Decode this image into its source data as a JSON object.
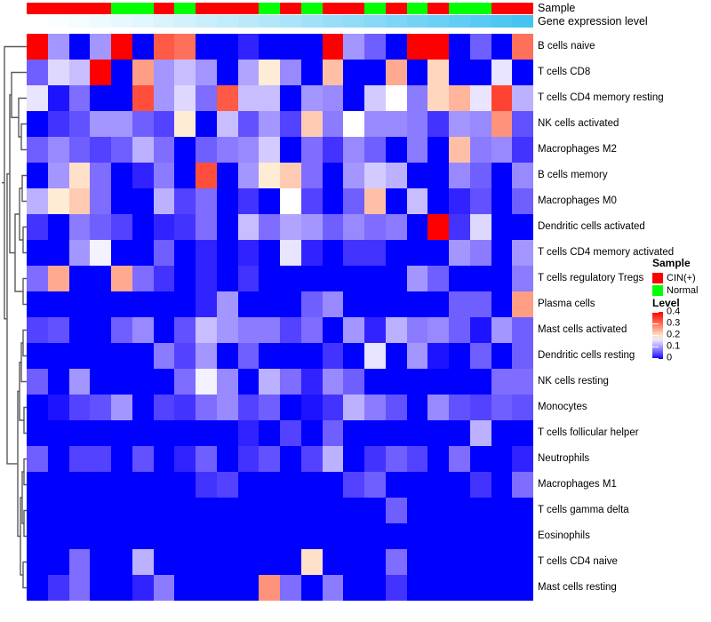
{
  "annotation_labels": {
    "sample": "Sample",
    "gene": "Gene expression level"
  },
  "legend": {
    "sample_title": "Sample",
    "sample_items": [
      {
        "label": "CIN(+)",
        "color": "#FF0000"
      },
      {
        "label": "Normal",
        "color": "#00FF00"
      }
    ],
    "level_title": "Level",
    "level_ticks": [
      "0.4",
      "0.3",
      "0.2",
      "0.1",
      "0"
    ]
  },
  "chart_data": {
    "type": "heatmap",
    "n_cols": 24,
    "rows": [
      "B cells naive",
      "T cells CD8",
      "T cells CD4 memory resting",
      "NK cells activated",
      "Macrophages M2",
      "B cells memory",
      "Macrophages M0",
      "Dendritic cells activated",
      "T cells CD4 memory activated",
      "T cells regulatory  Tregs",
      "Plasma cells",
      "Mast cells activated",
      "Dendritic cells resting",
      "NK cells resting",
      "Monocytes",
      "T cells follicular helper",
      "Neutrophils",
      "Macrophages M1",
      "T cells gamma delta",
      "Eosinophils",
      "T cells CD4 naive",
      "Mast cells resting"
    ],
    "values": [
      [
        0.4,
        0.1,
        0,
        0.1,
        0.4,
        0,
        0.32,
        0.3,
        0,
        0,
        0.02,
        0,
        0,
        0,
        0.4,
        0.1,
        0.06,
        0,
        0.4,
        0.4,
        0,
        0.06,
        0,
        0.3
      ],
      [
        0.06,
        0.15,
        0.13,
        0.4,
        0,
        0.26,
        0.1,
        0.13,
        0.1,
        0,
        0.11,
        0.19,
        0.09,
        0,
        0.23,
        0,
        0,
        0.25,
        0,
        0.21,
        0,
        0,
        0.16,
        0
      ],
      [
        0.16,
        0.01,
        0.07,
        0,
        0,
        0.33,
        0.1,
        0.15,
        0.07,
        0.32,
        0.13,
        0.13,
        0,
        0.1,
        0.09,
        0,
        0.14,
        0.18,
        0.08,
        0.21,
        0.24,
        0.16,
        0.34,
        0.12
      ],
      [
        0,
        0.03,
        0.05,
        0.1,
        0.1,
        0.06,
        0.04,
        0.19,
        0,
        0.13,
        0.05,
        0.1,
        0.04,
        0.22,
        0.08,
        0.18,
        0.09,
        0.09,
        0.08,
        0.03,
        0.1,
        0.09,
        0.27,
        0.05
      ],
      [
        0.06,
        0.09,
        0.06,
        0.04,
        0.06,
        0.12,
        0.07,
        0,
        0.06,
        0.08,
        0.09,
        0.14,
        0,
        0.07,
        0.03,
        0.09,
        0.06,
        0,
        0.08,
        0,
        0.23,
        0.08,
        0.09,
        0.03
      ],
      [
        0,
        0.1,
        0.2,
        0.07,
        0,
        0.02,
        0.08,
        0,
        0.33,
        0,
        0.1,
        0.19,
        0.22,
        0.07,
        0,
        0.1,
        0.14,
        0.12,
        0,
        0,
        0.09,
        0.06,
        0,
        0.09
      ],
      [
        0.12,
        0.19,
        0.22,
        0.07,
        0,
        0,
        0.12,
        0.04,
        0.07,
        0,
        0.03,
        0,
        0.18,
        0.04,
        0,
        0.06,
        0.23,
        0,
        0.13,
        0,
        0.02,
        0.05,
        0,
        0.06
      ],
      [
        0.03,
        0,
        0.08,
        0.06,
        0.04,
        0,
        0.02,
        0.03,
        0.07,
        0,
        0.13,
        0.07,
        0.11,
        0.1,
        0.06,
        0.09,
        0.07,
        0.08,
        0,
        0.4,
        0.03,
        0.15,
        0,
        0
      ],
      [
        0,
        0,
        0.1,
        0.17,
        0,
        0,
        0.06,
        0,
        0.02,
        0,
        0.02,
        0,
        0.16,
        0.02,
        0,
        0.03,
        0.03,
        0,
        0,
        0,
        0.1,
        0.08,
        0,
        0.1
      ],
      [
        0.07,
        0.25,
        0,
        0,
        0.25,
        0.07,
        0.03,
        0,
        0.02,
        0,
        0.03,
        0,
        0,
        0,
        0,
        0,
        0,
        0,
        0.1,
        0.06,
        0,
        0,
        0,
        0.08
      ],
      [
        0,
        0,
        0,
        0,
        0,
        0,
        0,
        0,
        0.02,
        0.1,
        0,
        0,
        0,
        0.06,
        0.09,
        0,
        0,
        0,
        0,
        0,
        0.06,
        0.06,
        0,
        0.26
      ],
      [
        0.04,
        0.05,
        0,
        0,
        0.06,
        0.09,
        0,
        0.05,
        0.13,
        0.1,
        0.08,
        0.08,
        0.04,
        0.07,
        0,
        0.1,
        0.02,
        0.12,
        0.08,
        0.09,
        0.06,
        0.01,
        0.1,
        0.06
      ],
      [
        0,
        0,
        0,
        0,
        0,
        0,
        0.08,
        0.04,
        0.1,
        0,
        0.06,
        0,
        0,
        0,
        0.03,
        0,
        0.16,
        0,
        0.1,
        0.01,
        0,
        0.06,
        0,
        0.06
      ],
      [
        0.06,
        0,
        0.1,
        0,
        0,
        0,
        0,
        0.07,
        0.17,
        0.09,
        0,
        0.12,
        0.07,
        0.02,
        0.09,
        0.06,
        0,
        0,
        0,
        0,
        0,
        0,
        0.07,
        0.07
      ],
      [
        0,
        0.01,
        0.04,
        0.05,
        0.1,
        0,
        0.04,
        0.03,
        0.07,
        0.09,
        0.04,
        0.06,
        0,
        0.01,
        0.03,
        0.12,
        0.08,
        0.05,
        0,
        0.09,
        0.05,
        0.04,
        0.06,
        0.05
      ],
      [
        0,
        0,
        0,
        0,
        0,
        0,
        0,
        0,
        0,
        0,
        0.02,
        0,
        0.04,
        0,
        0.06,
        0,
        0,
        0,
        0,
        0,
        0,
        0.12,
        0,
        0
      ],
      [
        0.06,
        0,
        0.04,
        0.04,
        0,
        0.05,
        0,
        0.02,
        0.06,
        0,
        0.03,
        0.05,
        0,
        0.04,
        0.12,
        0,
        0.03,
        0.06,
        0.04,
        0,
        0.07,
        0,
        0,
        0.02
      ],
      [
        0,
        0,
        0,
        0,
        0,
        0,
        0,
        0,
        0.03,
        0.04,
        0,
        0,
        0,
        0,
        0,
        0.04,
        0.06,
        0,
        0,
        0,
        0,
        0.03,
        0,
        0.07
      ],
      [
        0,
        0,
        0,
        0,
        0,
        0,
        0,
        0,
        0,
        0,
        0,
        0,
        0,
        0,
        0,
        0,
        0,
        0.06,
        0,
        0,
        0,
        0,
        0,
        0
      ],
      [
        0,
        0,
        0,
        0,
        0,
        0,
        0,
        0,
        0,
        0,
        0,
        0,
        0,
        0,
        0,
        0,
        0,
        0,
        0,
        0,
        0,
        0,
        0,
        0
      ],
      [
        0,
        0,
        0.07,
        0,
        0,
        0.12,
        0,
        0,
        0,
        0,
        0,
        0,
        0,
        0.2,
        0,
        0,
        0,
        0.07,
        0,
        0,
        0,
        0,
        0,
        0
      ],
      [
        0,
        0.03,
        0.07,
        0,
        0,
        0.02,
        0.08,
        0,
        0,
        0,
        0,
        0.27,
        0.07,
        0,
        0.08,
        0,
        0,
        0.03,
        0,
        0,
        0,
        0,
        0,
        0
      ]
    ],
    "value_range": [
      0,
      0.4
    ],
    "colormap": {
      "low": "#0000FF",
      "mid": "#FFFFFF",
      "high": "#FF0000",
      "mid_at": 0.18
    },
    "column_annotations": {
      "sample": [
        "CIN(+)",
        "CIN(+)",
        "CIN(+)",
        "CIN(+)",
        "Normal",
        "Normal",
        "CIN(+)",
        "Normal",
        "CIN(+)",
        "CIN(+)",
        "CIN(+)",
        "Normal",
        "CIN(+)",
        "Normal",
        "CIN(+)",
        "CIN(+)",
        "Normal",
        "CIN(+)",
        "Normal",
        "CIN(+)",
        "Normal",
        "Normal",
        "CIN(+)",
        "CIN(+)"
      ],
      "gene_expression_level": {
        "scale_from": "#FFFFFF",
        "scale_to": "#45C4F2",
        "direction": "low-to-high, left-to-right"
      }
    }
  }
}
